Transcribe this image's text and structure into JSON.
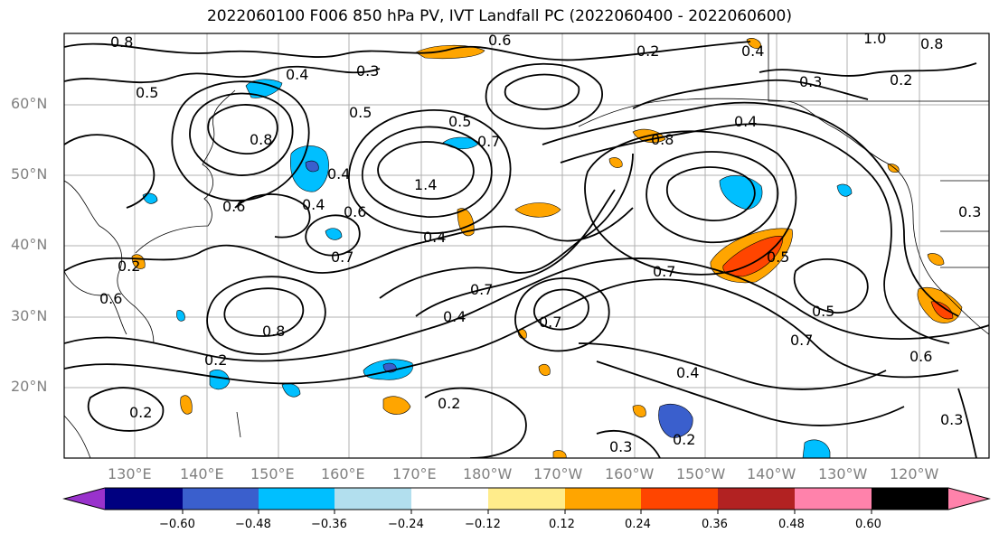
{
  "title": "2022060100 F006 850 hPa PV, IVT Landfall PC (2022060400 - 2022060600)",
  "lat_labels": [
    "60°N",
    "50°N",
    "40°N",
    "30°N",
    "20°N"
  ],
  "lon_labels": [
    "130°E",
    "140°E",
    "150°E",
    "160°E",
    "170°E",
    "180°W",
    "170°W",
    "160°W",
    "150°W",
    "140°W",
    "130°W",
    "120°W"
  ],
  "colorbar": {
    "colors": [
      "#9932cc",
      "#000080",
      "#3a5fcd",
      "#00bfff",
      "#b2dfee",
      "#ffffff",
      "#ffec8b",
      "#ffa500",
      "#ff4500",
      "#b22222",
      "#ff82ab"
    ],
    "ticks": [
      "−0.60",
      "−0.48",
      "−0.36",
      "−0.24",
      "−0.12",
      "0.12",
      "0.24",
      "0.36",
      "0.48",
      "0.60"
    ]
  },
  "contour_labels": [
    "0.8",
    "0.5",
    "0.4",
    "0.5",
    "0.3",
    "0.6",
    "0.2",
    "0.4",
    "1.0",
    "0.8",
    "0.3",
    "0.8",
    "0.5",
    "0.6",
    "0.7",
    "0.4",
    "0.8",
    "0.4",
    "0.6",
    "0.2",
    "1.4",
    "0.4",
    "0.7",
    "0.7",
    "0.5",
    "0.7",
    "0.8",
    "0.4",
    "0.7",
    "0.2",
    "0.4",
    "0.2",
    "0.2",
    "0.6",
    "0.5",
    "0.7",
    "0.6",
    "0.4",
    "0.2",
    "0.3",
    "0.2",
    "0.3",
    "0.3"
  ],
  "colors": {
    "pos_light": "#ffec8b",
    "pos_mid": "#ffa500",
    "pos_strong": "#ff4500",
    "neg_light": "#b2dfee",
    "neg_mid": "#00bfff",
    "neg_strong": "#3a5fcd"
  }
}
